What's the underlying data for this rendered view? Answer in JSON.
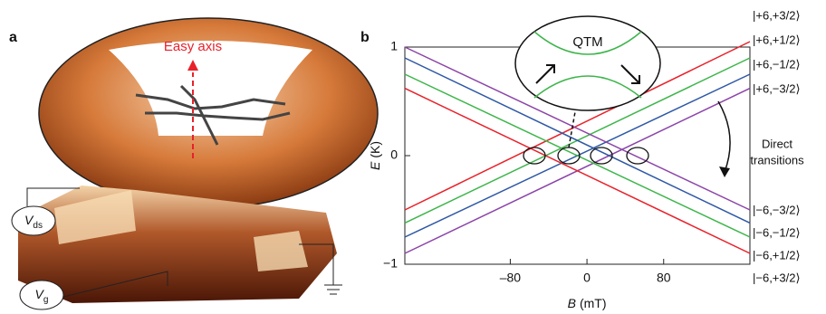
{
  "panel_a": {
    "label": "a",
    "easy_axis": "Easy axis",
    "vds": {
      "symbol": "V",
      "sub": "ds"
    },
    "vg": {
      "symbol": "V",
      "sub": "g"
    }
  },
  "chart_data": {
    "type": "line",
    "panel_label": "b",
    "xlabel": {
      "symbol": "B",
      "unit": "(mT)"
    },
    "ylabel": {
      "symbol": "E",
      "unit": "(K)"
    },
    "x": [
      -190,
      170
    ],
    "xlim": [
      -190,
      170
    ],
    "ylim": [
      -1,
      1
    ],
    "xticks": [
      {
        "value": -80,
        "label": "–80"
      },
      0,
      80
    ],
    "yticks": [
      {
        "value": -1,
        "label": "−1"
      },
      0,
      1
    ],
    "annotations": {
      "inset": "QTM",
      "transitions": [
        "Direct",
        "transitions"
      ]
    },
    "series": [
      {
        "name": "|+6,+3/2⟩",
        "color": "#e8212a",
        "values": [
          -0.5,
          1.05
        ]
      },
      {
        "name": "|+6,+1/2⟩",
        "color": "#3db54a",
        "values": [
          -0.62,
          0.9
        ]
      },
      {
        "name": "|+6,−1/2⟩",
        "color": "#2e57a5",
        "values": [
          -0.75,
          0.75
        ]
      },
      {
        "name": "|+6,−3/2⟩",
        "color": "#8b44a8",
        "values": [
          -0.9,
          0.62
        ]
      },
      {
        "name": "|−6,−3/2⟩",
        "color": "#8b44a8",
        "values": [
          1.0,
          -0.5
        ]
      },
      {
        "name": "|−6,−1/2⟩",
        "color": "#2e57a5",
        "values": [
          0.9,
          -0.62
        ]
      },
      {
        "name": "|−6,+1/2⟩",
        "color": "#3db54a",
        "values": [
          0.75,
          -0.75
        ]
      },
      {
        "name": "|−6,+3/2⟩",
        "color": "#e8212a",
        "values": [
          0.62,
          -0.9
        ]
      }
    ]
  }
}
